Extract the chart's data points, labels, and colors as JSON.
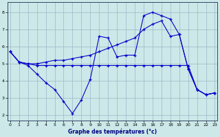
{
  "xlabel": "Graphe des températures (°c)",
  "background_color": "#cce8e8",
  "grid_color": "#9ab8c8",
  "line_color": "#0000cc",
  "x_ticks": [
    0,
    1,
    2,
    3,
    4,
    5,
    6,
    7,
    8,
    9,
    10,
    11,
    12,
    13,
    14,
    15,
    16,
    17,
    18,
    19,
    20,
    21,
    22,
    23
  ],
  "y_ticks": [
    2,
    3,
    4,
    5,
    6,
    7,
    8
  ],
  "ylim": [
    1.7,
    8.6
  ],
  "xlim": [
    -0.3,
    23.3
  ],
  "line1_x": [
    0,
    1,
    2,
    3,
    4,
    5,
    6,
    7,
    8,
    9,
    10,
    11,
    12,
    13,
    14,
    15,
    16,
    17,
    18,
    19,
    20,
    21,
    22,
    23
  ],
  "line1_y": [
    5.7,
    5.1,
    4.9,
    4.4,
    3.9,
    3.5,
    2.8,
    2.1,
    2.9,
    4.1,
    6.6,
    6.5,
    5.4,
    5.5,
    5.5,
    7.8,
    8.0,
    7.8,
    7.6,
    6.7,
    4.7,
    3.5,
    3.2,
    3.3
  ],
  "line2_x": [
    0,
    1,
    2,
    3,
    4,
    5,
    6,
    7,
    8,
    9,
    10,
    11,
    12,
    13,
    14,
    15,
    16,
    17,
    18,
    19,
    20,
    21,
    22,
    23
  ],
  "line2_y": [
    5.7,
    5.1,
    5.0,
    5.0,
    5.1,
    5.2,
    5.2,
    5.3,
    5.4,
    5.5,
    5.7,
    5.9,
    6.1,
    6.3,
    6.5,
    7.0,
    7.3,
    7.5,
    6.6,
    6.7,
    4.7,
    3.5,
    3.2,
    3.3
  ],
  "line3_x": [
    0,
    1,
    2,
    3,
    4,
    5,
    6,
    7,
    8,
    9,
    10,
    11,
    12,
    13,
    14,
    15,
    16,
    17,
    18,
    19,
    20,
    21,
    22,
    23
  ],
  "line3_y": [
    5.7,
    5.1,
    5.0,
    4.9,
    4.9,
    4.9,
    4.9,
    4.9,
    4.9,
    4.9,
    4.9,
    4.9,
    4.9,
    4.9,
    4.9,
    4.9,
    4.9,
    4.9,
    4.9,
    4.9,
    4.9,
    3.5,
    3.2,
    3.3
  ]
}
